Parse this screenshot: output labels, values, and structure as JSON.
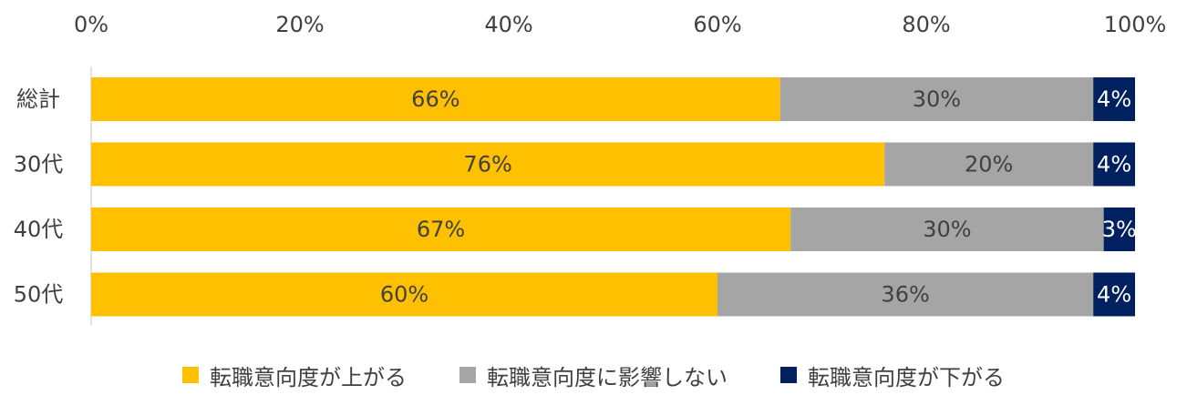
{
  "chart_data": {
    "type": "bar",
    "orientation": "horizontal",
    "stacked": true,
    "categories": [
      "総計",
      "30代",
      "40代",
      "50代"
    ],
    "series": [
      {
        "name": "転職意向度が上がる",
        "color": "#FFC000",
        "label_color": "#404040",
        "values": [
          66,
          76,
          67,
          60
        ]
      },
      {
        "name": "転職意向度に影響しない",
        "color": "#A5A5A5",
        "label_color": "#404040",
        "values": [
          30,
          20,
          30,
          36
        ]
      },
      {
        "name": "転職意向度が下がる",
        "color": "#002060",
        "label_color": "#FFFFFF",
        "values": [
          4,
          4,
          3,
          4
        ]
      }
    ],
    "data_labels": [
      [
        "66%",
        "76%",
        "67%",
        "60%"
      ],
      [
        "30%",
        "20%",
        "30%",
        "36%"
      ],
      [
        "4%",
        "4%",
        "3%",
        "4%"
      ]
    ],
    "x_ticks": [
      "0%",
      "20%",
      "40%",
      "60%",
      "80%",
      "100%"
    ],
    "xlim": [
      0,
      100
    ],
    "x_axis_position": "top",
    "grid": false,
    "legend_position": "bottom"
  }
}
